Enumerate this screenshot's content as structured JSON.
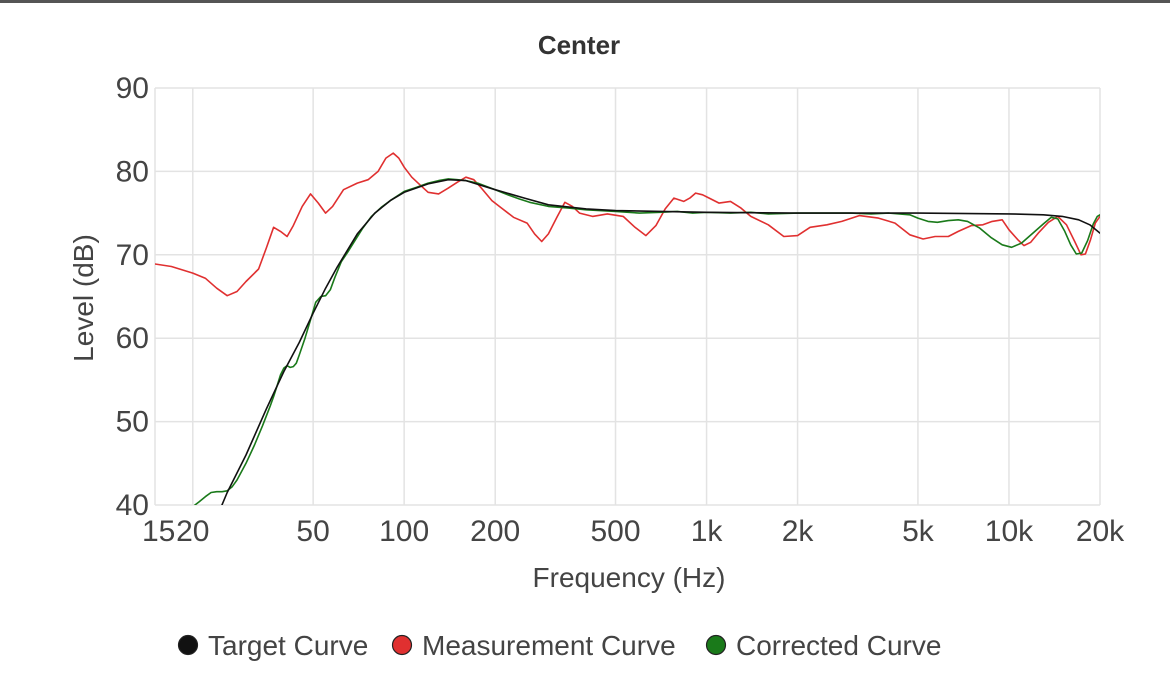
{
  "chart_data": {
    "type": "line",
    "title": "Center",
    "xlabel": "Frequency (Hz)",
    "ylabel": "Level (dB)",
    "x_scale": "log",
    "xlim": [
      15,
      20000
    ],
    "ylim": [
      40,
      90
    ],
    "grid": true,
    "legend_position": "bottom",
    "x_ticks": [
      {
        "value": 15,
        "label": "15"
      },
      {
        "value": 20,
        "label": "20"
      },
      {
        "value": 50,
        "label": "50"
      },
      {
        "value": 100,
        "label": "100"
      },
      {
        "value": 200,
        "label": "200"
      },
      {
        "value": 500,
        "label": "500"
      },
      {
        "value": 1000,
        "label": "1k"
      },
      {
        "value": 2000,
        "label": "2k"
      },
      {
        "value": 5000,
        "label": "5k"
      },
      {
        "value": 10000,
        "label": "10k"
      },
      {
        "value": 20000,
        "label": "20k"
      }
    ],
    "y_ticks": [
      {
        "value": 40,
        "label": "40"
      },
      {
        "value": 50,
        "label": "50"
      },
      {
        "value": 60,
        "label": "60"
      },
      {
        "value": 70,
        "label": "70"
      },
      {
        "value": 80,
        "label": "80"
      },
      {
        "value": 90,
        "label": "90"
      }
    ],
    "series": [
      {
        "name": "Target Curve",
        "color": "#111111",
        "width": 1.6,
        "points": [
          [
            24,
            38.5
          ],
          [
            26,
            41.5
          ],
          [
            30,
            46
          ],
          [
            35,
            51.5
          ],
          [
            40,
            56
          ],
          [
            45,
            59.5
          ],
          [
            50,
            63
          ],
          [
            55,
            66
          ],
          [
            60,
            68.5
          ],
          [
            70,
            72.5
          ],
          [
            80,
            75
          ],
          [
            90,
            76.5
          ],
          [
            100,
            77.5
          ],
          [
            120,
            78.5
          ],
          [
            140,
            79
          ],
          [
            160,
            78.9
          ],
          [
            200,
            77.8
          ],
          [
            250,
            76.8
          ],
          [
            300,
            76
          ],
          [
            400,
            75.5
          ],
          [
            500,
            75.3
          ],
          [
            1000,
            75.1
          ],
          [
            2000,
            75
          ],
          [
            5000,
            75
          ],
          [
            10000,
            74.9
          ],
          [
            13000,
            74.8
          ],
          [
            15000,
            74.6
          ],
          [
            17000,
            74.2
          ],
          [
            18500,
            73.6
          ],
          [
            20000,
            72.6
          ]
        ]
      },
      {
        "name": "Measurement Curve",
        "color": "#e03030",
        "width": 1.6,
        "points": [
          [
            15,
            68.9
          ],
          [
            17,
            68.6
          ],
          [
            20,
            67.8
          ],
          [
            22,
            67.2
          ],
          [
            24,
            66
          ],
          [
            26,
            65.1
          ],
          [
            28,
            65.6
          ],
          [
            30,
            66.8
          ],
          [
            33,
            68.3
          ],
          [
            35,
            70.8
          ],
          [
            37,
            73.3
          ],
          [
            39,
            72.8
          ],
          [
            41,
            72.2
          ],
          [
            43,
            73.5
          ],
          [
            46,
            75.8
          ],
          [
            49,
            77.3
          ],
          [
            52,
            76.2
          ],
          [
            55,
            75
          ],
          [
            58,
            75.8
          ],
          [
            63,
            77.8
          ],
          [
            70,
            78.6
          ],
          [
            76,
            79
          ],
          [
            82,
            80
          ],
          [
            87,
            81.6
          ],
          [
            92,
            82.2
          ],
          [
            96,
            81.6
          ],
          [
            100,
            80.5
          ],
          [
            106,
            79.3
          ],
          [
            112,
            78.5
          ],
          [
            120,
            77.5
          ],
          [
            130,
            77.3
          ],
          [
            140,
            78
          ],
          [
            150,
            78.7
          ],
          [
            160,
            79.3
          ],
          [
            170,
            79
          ],
          [
            180,
            78
          ],
          [
            195,
            76.5
          ],
          [
            210,
            75.6
          ],
          [
            230,
            74.5
          ],
          [
            255,
            73.8
          ],
          [
            270,
            72.5
          ],
          [
            285,
            71.6
          ],
          [
            300,
            72.5
          ],
          [
            320,
            74.5
          ],
          [
            340,
            76.3
          ],
          [
            360,
            75.8
          ],
          [
            380,
            75
          ],
          [
            420,
            74.6
          ],
          [
            470,
            74.9
          ],
          [
            530,
            74.6
          ],
          [
            580,
            73.3
          ],
          [
            630,
            72.3
          ],
          [
            680,
            73.5
          ],
          [
            730,
            75.5
          ],
          [
            780,
            76.8
          ],
          [
            840,
            76.4
          ],
          [
            880,
            76.8
          ],
          [
            920,
            77.4
          ],
          [
            970,
            77.2
          ],
          [
            1020,
            76.8
          ],
          [
            1100,
            76.2
          ],
          [
            1200,
            76.4
          ],
          [
            1300,
            75.6
          ],
          [
            1400,
            74.6
          ],
          [
            1600,
            73.6
          ],
          [
            1800,
            72.2
          ],
          [
            2000,
            72.3
          ],
          [
            2200,
            73.3
          ],
          [
            2500,
            73.6
          ],
          [
            2800,
            74
          ],
          [
            3200,
            74.7
          ],
          [
            3700,
            74.4
          ],
          [
            4200,
            73.8
          ],
          [
            4700,
            72.4
          ],
          [
            5200,
            71.9
          ],
          [
            5700,
            72.2
          ],
          [
            6300,
            72.2
          ],
          [
            6800,
            72.8
          ],
          [
            7500,
            73.5
          ],
          [
            8200,
            73.6
          ],
          [
            8800,
            74
          ],
          [
            9500,
            74.2
          ],
          [
            10000,
            73
          ],
          [
            10700,
            71.8
          ],
          [
            11200,
            71.1
          ],
          [
            11800,
            71.5
          ],
          [
            12500,
            72.6
          ],
          [
            13500,
            73.9
          ],
          [
            14500,
            74.6
          ],
          [
            15500,
            73.6
          ],
          [
            16500,
            71.6
          ],
          [
            17300,
            70
          ],
          [
            17900,
            70.1
          ],
          [
            18600,
            71.8
          ],
          [
            19300,
            73.8
          ],
          [
            20000,
            74.6
          ]
        ]
      },
      {
        "name": "Corrected Curve",
        "color": "#1a7a1a",
        "width": 1.6,
        "points": [
          [
            20,
            39.8
          ],
          [
            21,
            40.4
          ],
          [
            22,
            41
          ],
          [
            23,
            41.5
          ],
          [
            24,
            41.6
          ],
          [
            25,
            41.6
          ],
          [
            26,
            41.7
          ],
          [
            27,
            42.2
          ],
          [
            28,
            43
          ],
          [
            30,
            45
          ],
          [
            32,
            47.2
          ],
          [
            34,
            49.5
          ],
          [
            36,
            51.8
          ],
          [
            37,
            53
          ],
          [
            38,
            54.3
          ],
          [
            39,
            55.6
          ],
          [
            40,
            56.4
          ],
          [
            41,
            56.7
          ],
          [
            42,
            56.5
          ],
          [
            43,
            56.6
          ],
          [
            44,
            57
          ],
          [
            45,
            58
          ],
          [
            47,
            60
          ],
          [
            49,
            62.2
          ],
          [
            51,
            64.3
          ],
          [
            53,
            65
          ],
          [
            55,
            65.1
          ],
          [
            57,
            65.8
          ],
          [
            59,
            67.3
          ],
          [
            62,
            69.2
          ],
          [
            65,
            70.3
          ],
          [
            69,
            71.8
          ],
          [
            73,
            73.2
          ],
          [
            78,
            74.6
          ],
          [
            84,
            75.7
          ],
          [
            90,
            76.5
          ],
          [
            100,
            77.6
          ],
          [
            110,
            78.1
          ],
          [
            120,
            78.6
          ],
          [
            130,
            78.9
          ],
          [
            140,
            79.1
          ],
          [
            150,
            79
          ],
          [
            160,
            78.9
          ],
          [
            175,
            78.6
          ],
          [
            200,
            77.8
          ],
          [
            220,
            77.2
          ],
          [
            240,
            76.7
          ],
          [
            260,
            76.3
          ],
          [
            300,
            75.8
          ],
          [
            350,
            75.6
          ],
          [
            400,
            75.4
          ],
          [
            500,
            75.2
          ],
          [
            600,
            75
          ],
          [
            700,
            75.1
          ],
          [
            800,
            75.2
          ],
          [
            900,
            75
          ],
          [
            1000,
            75.1
          ],
          [
            1200,
            75
          ],
          [
            1400,
            75.1
          ],
          [
            1600,
            74.9
          ],
          [
            2000,
            75
          ],
          [
            2500,
            75
          ],
          [
            3000,
            75
          ],
          [
            3500,
            74.9
          ],
          [
            4000,
            75
          ],
          [
            4700,
            74.8
          ],
          [
            5000,
            74.4
          ],
          [
            5400,
            74
          ],
          [
            5800,
            73.9
          ],
          [
            6300,
            74.1
          ],
          [
            6800,
            74.2
          ],
          [
            7300,
            74
          ],
          [
            8000,
            73.2
          ],
          [
            8700,
            72.1
          ],
          [
            9500,
            71.2
          ],
          [
            10200,
            70.9
          ],
          [
            11000,
            71.4
          ],
          [
            12000,
            72.6
          ],
          [
            13000,
            73.7
          ],
          [
            13800,
            74.5
          ],
          [
            14500,
            74.3
          ],
          [
            15300,
            72.8
          ],
          [
            16000,
            71.2
          ],
          [
            16700,
            70.1
          ],
          [
            17400,
            70.2
          ],
          [
            18200,
            71.7
          ],
          [
            19000,
            73.7
          ],
          [
            19600,
            74.6
          ],
          [
            20000,
            74.8
          ]
        ]
      }
    ]
  }
}
